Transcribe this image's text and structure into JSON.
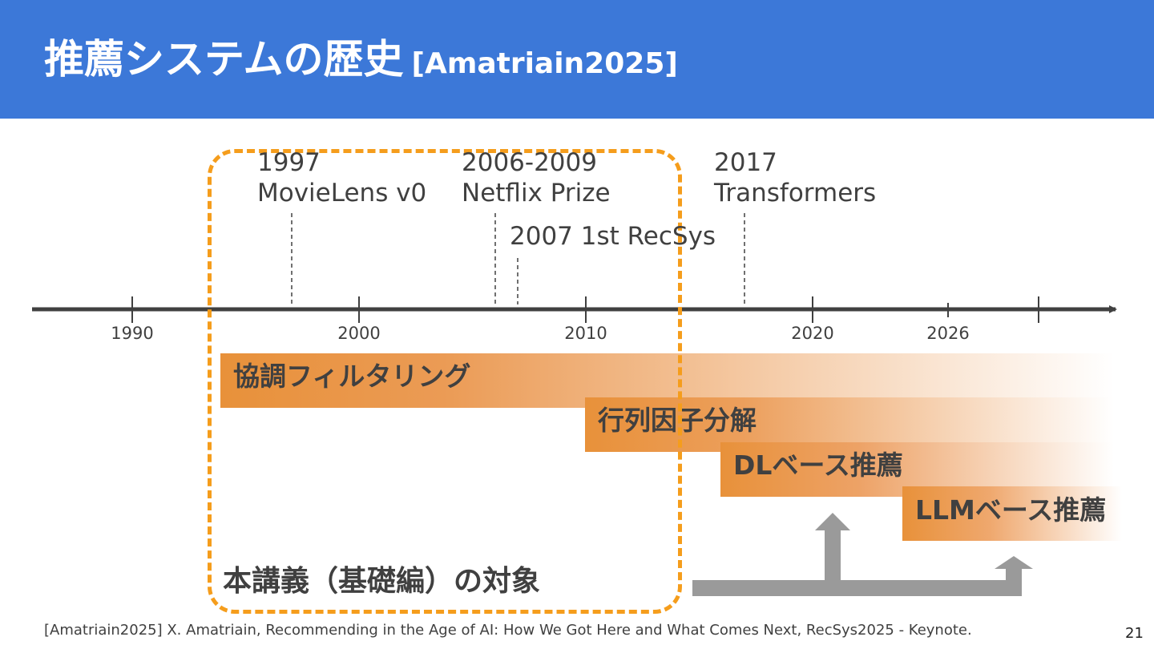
{
  "slide": {
    "title": "推薦システムの歴史",
    "title_citation": "[Amatriain2025]",
    "scope_label": "本講義（基礎編）の対象",
    "footnote": "[Amatriain2025] X. Amatriain, Recommending in the Age of AI: How We Got Here and What Comes Next, RecSys2025 - Keynote.",
    "page_number": "21"
  },
  "events": {
    "movielens": {
      "year": "1997",
      "label": "MovieLens v0"
    },
    "netflix": {
      "year": "2006-2009",
      "label": "Netflix Prize"
    },
    "recsys": {
      "label": "2007 1st RecSys"
    },
    "transformers": {
      "year": "2017",
      "label": "Transformers"
    }
  },
  "timeline": {
    "ticks": [
      "1990",
      "2000",
      "2010",
      "2020",
      "2026"
    ]
  },
  "eras": [
    {
      "label": "協調フィルタリング"
    },
    {
      "label": "行列因子分解"
    },
    {
      "label": "DLベース推薦"
    },
    {
      "label": "LLMベース推薦"
    }
  ],
  "colors": {
    "header": "#3c78d8",
    "accent_orange": "#f59d1c",
    "era_fill": "#e8913a",
    "axis": "#404040",
    "arrow_gray": "#999999"
  }
}
